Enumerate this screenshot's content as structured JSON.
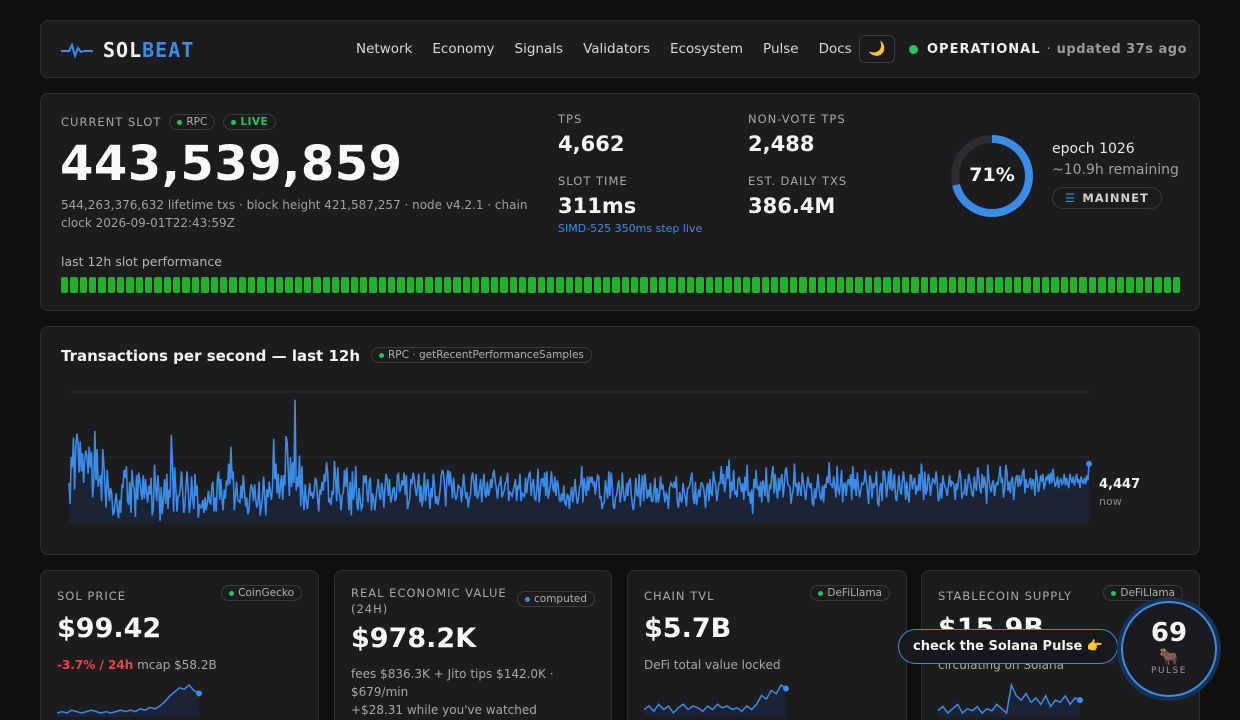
{
  "header": {
    "logo_a": "SOL",
    "logo_b": "BEAT",
    "nav": [
      "Network",
      "Economy",
      "Signals",
      "Validators",
      "Ecosystem",
      "Pulse",
      "Docs"
    ],
    "theme_icon": "moon-icon",
    "status_label": "OPERATIONAL",
    "status_sep": "·",
    "updated": "updated 37s ago",
    "status_color": "#22c55e"
  },
  "slot": {
    "label": "CURRENT SLOT",
    "rpc_pill": "RPC",
    "live_pill": "LIVE",
    "value": "443,539,859",
    "meta": "544,263,376,632 lifetime txs · block height 421,587,257 · node v4.2.1 · chain clock 2026-09-01T22:43:59Z",
    "perf_label": "last 12h slot performance",
    "perf_bar_count": 120,
    "stats": [
      {
        "label": "TPS",
        "value": "4,662"
      },
      {
        "label": "NON-VOTE TPS",
        "value": "2,488"
      },
      {
        "label": "SLOT TIME",
        "value": "311ms",
        "note": "SIMD-525 350ms step live"
      },
      {
        "label": "EST. DAILY TXS",
        "value": "386.4M"
      }
    ],
    "epoch_progress": 0.71,
    "epoch_progress_text": "71%",
    "epoch": "epoch 1026",
    "epoch_remaining": "~10.9h remaining",
    "network": "MAINNET",
    "accent": "#3b8be8"
  },
  "tps_chart": {
    "title": "Transactions per second — last 12h",
    "source": "RPC · getRecentPerformanceSamples",
    "now_value": "4,447",
    "now_label": "now"
  },
  "chart_data": {
    "type": "area",
    "title": "Transactions per second — last 12h",
    "xlabel": "",
    "ylabel": "",
    "values": [
      4300,
      4140,
      4500,
      4420,
      4650,
      4250,
      4560,
      4680,
      4610,
      4380,
      4620,
      4390,
      4530,
      4300,
      4480,
      4550,
      4500,
      4370,
      4580,
      4420,
      4540,
      4190,
      4290,
      4700,
      4320,
      4560,
      4270,
      4320,
      4360,
      4160,
      4560,
      4440,
      4280,
      4110,
      4400,
      4270,
      4160,
      4260,
      4220,
      4060,
      4070,
      4160,
      4220,
      4100,
      4030,
      4170,
      4070,
      4280,
      4270,
      4400,
      4340,
      4430,
      4170,
      4130,
      4310,
      4070,
      4400,
      4290,
      4250,
      4040,
      4360,
      4170,
      4380,
      4320,
      4230,
      4170,
      4360,
      4180,
      4330,
      4220,
      4150,
      4280,
      4210,
      4340,
      4050,
      4100,
      4440,
      4260,
      4160,
      4360,
      4230,
      4010,
      4270,
      4060,
      4190,
      4330,
      4140,
      4370,
      4100,
      4250,
      4190,
      4670,
      4450,
      4080,
      4420,
      4260,
      4080,
      4200,
      4200,
      4260,
      4390,
      4240,
      4070,
      4120,
      4290,
      4390,
      4250,
      4070,
      4160,
      4350,
      4180,
      4100,
      4370,
      4200,
      4280,
      4030,
      4140,
      4110,
      4110,
      4170,
      4070,
      4190,
      4090,
      4150,
      4240,
      4150,
      4140,
      4270,
      4310,
      4080,
      4190,
      4080,
      4330,
      4390,
      4170,
      4330,
      4180,
      4090,
      4250,
      4180,
      4320,
      4280,
      4450,
      4290,
      4580,
      4330,
      4390,
      4090,
      4200,
      4310,
      4170,
      4160,
      4150,
      4280,
      4180,
      4360,
      4240,
      4120,
      4190,
      4060,
      4090,
      4220,
      4290,
      4260,
      4160,
      4290,
      4180,
      4110,
      4150,
      4310,
      4050,
      4110,
      4190,
      4350,
      4200,
      4050,
      4250,
      4190,
      4310,
      4230,
      4170,
      4280,
      4640,
      4330,
      4450,
      4220,
      4370,
      4180,
      4270,
      4360,
      4170,
      4360,
      4280,
      4660,
      4610,
      4390,
      4200,
      4500,
      4270,
      4460,
      4300,
      4940,
      4240,
      4350,
      4270,
      4510,
      4120,
      4430,
      4190,
      4090,
      4290,
      4160,
      4100,
      4200,
      4300,
      4200,
      4230,
      4180,
      4240,
      4340,
      4320,
      4190,
      4080,
      4250,
      4210,
      4310,
      4240,
      4370,
      4310,
      4460,
      4380,
      4150,
      4170,
      4130,
      4240,
      4210,
      4470,
      4360,
      4160,
      4420,
      4240,
      4190,
      4090,
      4210,
      4230,
      4400,
      4270,
      4420,
      4230,
      4090,
      4310,
      4050,
      4390,
      4170,
      4250,
      4430,
      4140,
      4090,
      4260,
      4170,
      4100,
      4120,
      4360,
      4300,
      4360,
      4230,
      4150,
      4310,
      4340,
      4090,
      4220,
      4170,
      4090,
      4190,
      4260,
      4330,
      4200,
      4170,
      4300,
      4240,
      4110,
      4270,
      4370,
      4320,
      4200,
      4330,
      4150,
      4180,
      4250,
      4270,
      4160,
      4190,
      4360,
      4370,
      4230,
      4260,
      4320,
      4280,
      4380,
      4210,
      4360,
      4100,
      4140,
      4180,
      4330,
      4290,
      4380,
      4340,
      4250,
      4200,
      4280,
      4370,
      4150,
      4280,
      4120,
      4190,
      4380,
      4160,
      4260,
      4330,
      4220,
      4100,
      4260,
      4190,
      4370,
      4280,
      4140,
      4200,
      4130,
      4180,
      4250,
      4360,
      4400,
      4370,
      4280,
      4120,
      4340,
      4400,
      4280,
      4390,
      4290,
      4180,
      4340,
      4220,
      4170,
      4200,
      4280,
      4270,
      4260,
      4150,
      4270,
      4370,
      4240,
      4180,
      4230,
      4110,
      4180,
      4210,
      4340,
      4380,
      4300,
      4200,
      4370,
      4180,
      4200,
      4260,
      4330,
      4150,
      4280,
      4370,
      4210,
      4190,
      4310,
      4200,
      4240,
      4330,
      4260,
      4370,
      4400,
      4320,
      4260,
      4180,
      4280,
      4290,
      4350,
      4190,
      4220,
      4240,
      4300,
      4310,
      4380,
      4160,
      4230,
      4220,
      4200,
      4240,
      4280,
      4330,
      4160,
      4280,
      4250,
      4370,
      4160,
      4220,
      4210,
      4190,
      4340,
      4220,
      4310,
      4370,
      4380,
      4200,
      4290,
      4330,
      4180,
      4170,
      4250,
      4410,
      4150,
      4240,
      4330,
      4330,
      4270,
      4380,
      4200,
      4390,
      4180,
      4230,
      4280,
      4390,
      4280,
      4230,
      4350,
      4200,
      4320,
      4290,
      4170,
      4160,
      4220,
      4160,
      4280,
      4140,
      4130,
      4210,
      4200,
      4100,
      4210,
      4270,
      4150,
      4230,
      4330,
      4210,
      4140,
      4180,
      4270,
      4290,
      4430,
      4150,
      4340,
      4270,
      4200,
      4350,
      4240,
      4350,
      4300,
      4350,
      4290,
      4310,
      4210,
      4300,
      4360,
      4350,
      4180,
      4200,
      4100,
      4140,
      4150,
      4320,
      4250,
      4180,
      4390,
      4200,
      4380,
      4300,
      4120,
      4100,
      4190,
      4210,
      4290,
      4320,
      4150,
      4210,
      4380,
      4240,
      4160,
      4200,
      4300,
      4200,
      4320,
      4330,
      4210,
      4130,
      4090,
      4190,
      4340,
      4210,
      4200,
      4370,
      4120,
      4250,
      4360,
      4160,
      4370,
      4290,
      4180,
      4250,
      4190,
      4300,
      4160,
      4160,
      4230,
      4340,
      4150,
      4260,
      4150,
      4200,
      4350,
      4250,
      4290,
      4220,
      4150,
      4220,
      4200,
      4100,
      4260,
      4300,
      4280,
      4270,
      4310,
      4260,
      4350,
      4150,
      4110,
      4230,
      4170,
      4150,
      4300,
      4240,
      4190,
      4120,
      4260,
      4260,
      4290,
      4340,
      4380,
      4190,
      4140,
      4310,
      4130,
      4190,
      4250,
      4190,
      4300,
      4300,
      4270,
      4210,
      4110,
      4260,
      4300,
      4160,
      4330,
      4220,
      4200,
      4390,
      4320,
      4290,
      4160,
      4230,
      4300,
      4300,
      4430,
      4290,
      4370,
      4230,
      4300,
      4430,
      4330,
      4480,
      4180,
      4310,
      4240,
      4400,
      4210,
      4240,
      4190,
      4330,
      4340,
      4290,
      4230,
      4300,
      4170,
      4350,
      4240,
      4440,
      4200,
      4230,
      4140,
      4250,
      4060,
      4330,
      4260,
      4400,
      4250,
      4280,
      4190,
      4310,
      4150,
      4320,
      4270,
      4200,
      4420,
      4200,
      4150,
      4290,
      4250,
      4370,
      4430,
      4220,
      4370,
      4250,
      4180,
      4340,
      4240,
      4330,
      4370,
      4190,
      4280,
      4400,
      4420,
      4300,
      4280,
      4270,
      4140,
      4210,
      4240,
      4450,
      4270,
      4300,
      4200,
      4310,
      4250,
      4200,
      4380,
      4300,
      4250,
      4170,
      4260,
      4350,
      4290,
      4260,
      4300,
      4140,
      4130,
      4260,
      4180,
      4270,
      4370,
      4260,
      4190,
      4170,
      4280,
      4150,
      4290,
      4260,
      4350,
      4300,
      4460,
      4290,
      4290,
      4260,
      4350,
      4270,
      4190,
      4430,
      4240,
      4220,
      4300,
      4400,
      4150,
      4290,
      4300,
      4200,
      4290,
      4330,
      4280,
      4370,
      4170,
      4430,
      4250,
      4330,
      4200,
      4380,
      4260,
      4190,
      4240,
      4300,
      4290,
      4310,
      4400,
      4310,
      4240,
      4140,
      4360,
      4330,
      4180,
      4300,
      4270,
      4290,
      4390,
      4150,
      4120,
      4260,
      4300,
      4160,
      4390,
      4390,
      4310,
      4190,
      4290,
      4390,
      4250,
      4410,
      4240,
      4270,
      4370,
      4180,
      4160,
      4260,
      4360,
      4250,
      4210,
      4310,
      4390,
      4300,
      4170,
      4310,
      4200,
      4150,
      4360,
      4360,
      4250,
      4310,
      4340,
      4210,
      4280,
      4240,
      4370,
      4240,
      4450,
      4330,
      4170,
      4390,
      4210,
      4250,
      4370,
      4330,
      4200,
      4280,
      4330,
      4320,
      4290,
      4390,
      4310,
      4160,
      4180,
      4300,
      4180,
      4360,
      4300,
      4270,
      4240,
      4200,
      4280,
      4360,
      4270,
      4310,
      4300,
      4280,
      4170,
      4300,
      4250,
      4320,
      4400,
      4340,
      4180,
      4220,
      4220,
      4330,
      4200,
      4270,
      4370,
      4320,
      4280,
      4210,
      4200,
      4350,
      4280,
      4240,
      4420,
      4350,
      4260,
      4220,
      4370,
      4260,
      4350,
      4280,
      4140,
      4440,
      4330,
      4270,
      4230,
      4300,
      4320,
      4200,
      4280,
      4300,
      4290,
      4350,
      4430,
      4300,
      4340,
      4190,
      4260,
      4440,
      4390,
      4240,
      4310,
      4220,
      4320,
      4350,
      4170,
      4270,
      4340,
      4360,
      4270,
      4360,
      4290,
      4310,
      4380,
      4410,
      4220,
      4330,
      4270,
      4270,
      4310,
      4340,
      4250,
      4330,
      4300,
      4200,
      4400,
      4330,
      4230,
      4270,
      4360,
      4310,
      4370,
      4250,
      4290,
      4350,
      4320,
      4370,
      4290,
      4380,
      4300,
      4410,
      4330,
      4270,
      4300,
      4350,
      4260,
      4320,
      4330,
      4290,
      4300,
      4370,
      4280,
      4340,
      4300,
      4260,
      4370,
      4330,
      4300,
      4350,
      4280,
      4320,
      4370,
      4300,
      4330,
      4260,
      4350,
      4310,
      4300,
      4340,
      4290,
      4360,
      4320,
      4447
    ],
    "ylim": [
      4000,
      5000
    ],
    "grid": true
  },
  "cards": [
    {
      "label": "SOL PRICE",
      "source": "CoinGecko",
      "value": "$99.42",
      "change": "-3.7% / 24h",
      "sub": "mcap $58.2B",
      "spark": [
        40,
        41,
        40,
        42,
        41,
        40,
        41,
        42,
        41,
        40,
        41,
        40,
        41,
        42,
        41,
        42,
        41,
        43,
        42,
        44,
        43,
        45,
        48,
        52,
        55,
        58,
        57,
        60,
        56,
        54
      ]
    },
    {
      "label": "REAL ECONOMIC VALUE (24H)",
      "source": "computed",
      "value": "$978.2K",
      "sub": "fees $836.3K + Jito tips $142.0K · $679/min",
      "sub2": "+$28.31 while you've watched"
    },
    {
      "label": "CHAIN TVL",
      "source": "DeFiLlama",
      "value": "$5.7B",
      "sub": "DeFi total value locked",
      "spark": [
        44,
        46,
        43,
        47,
        44,
        46,
        42,
        45,
        47,
        44,
        46,
        45,
        43,
        46,
        44,
        47,
        45,
        46,
        44,
        45,
        43,
        46,
        44,
        47,
        52,
        50,
        55,
        53,
        58,
        56
      ]
    },
    {
      "label": "STABLECOIN SUPPLY",
      "source": "DeFiLlama",
      "value": "$15.9B",
      "sub": "circulating on Solana",
      "spark": [
        45,
        47,
        44,
        46,
        48,
        44,
        46,
        45,
        47,
        44,
        46,
        45,
        48,
        46,
        44,
        57,
        52,
        50,
        53,
        49,
        51,
        48,
        52,
        47,
        50,
        49,
        52,
        48,
        51,
        50
      ]
    }
  ],
  "pulse": {
    "toast": "check the Solana Pulse 👉",
    "score": "69",
    "icon": "bull-icon",
    "label": "PULSE"
  }
}
